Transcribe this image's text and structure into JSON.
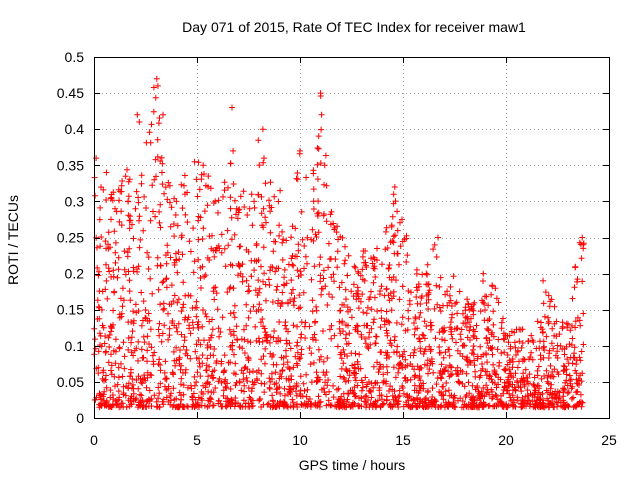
{
  "chart_data": {
    "type": "scatter",
    "title": "Day 071 of 2015, Rate Of TEC Index for receiver maw1",
    "xlabel": "GPS time / hours",
    "ylabel": "ROTI / TECUs",
    "xlim": [
      0,
      25
    ],
    "ylim": [
      0,
      0.5
    ],
    "x_ticks": [
      0,
      5,
      10,
      15,
      20,
      25
    ],
    "x_tick_labels": [
      "0",
      "5",
      "10",
      "15",
      "20",
      "25"
    ],
    "y_ticks": [
      0,
      0.05,
      0.1,
      0.15,
      0.2,
      0.25,
      0.3,
      0.35,
      0.4,
      0.45,
      0.5
    ],
    "y_tick_labels": [
      "0",
      "0.05",
      "0.1",
      "0.15",
      "0.2",
      "0.25",
      "0.3",
      "0.35",
      "0.4",
      "0.45",
      "0.5"
    ],
    "grid": true,
    "marker": "+",
    "marker_color": "#ff0000",
    "series": [
      {
        "name": "ROTI",
        "color": "#ff0000",
        "x_range_hours": [
          0,
          23.8
        ],
        "envelope": [
          [
            0,
            0.36
          ],
          [
            0.5,
            0.34
          ],
          [
            1,
            0.32
          ],
          [
            1.5,
            0.36
          ],
          [
            2,
            0.3
          ],
          [
            2.5,
            0.44
          ],
          [
            3,
            0.47
          ],
          [
            3.5,
            0.34
          ],
          [
            4,
            0.3
          ],
          [
            4.5,
            0.35
          ],
          [
            5,
            0.36
          ],
          [
            5.5,
            0.35
          ],
          [
            6,
            0.33
          ],
          [
            6.5,
            0.38
          ],
          [
            7,
            0.33
          ],
          [
            7.5,
            0.3
          ],
          [
            8,
            0.4
          ],
          [
            8.5,
            0.33
          ],
          [
            9,
            0.32
          ],
          [
            9.5,
            0.27
          ],
          [
            10,
            0.37
          ],
          [
            10.5,
            0.32
          ],
          [
            11,
            0.45
          ],
          [
            11.5,
            0.3
          ],
          [
            12,
            0.25
          ],
          [
            12.5,
            0.25
          ],
          [
            13,
            0.24
          ],
          [
            13.5,
            0.22
          ],
          [
            14,
            0.26
          ],
          [
            14.5,
            0.33
          ],
          [
            15,
            0.28
          ],
          [
            15.5,
            0.2
          ],
          [
            16,
            0.22
          ],
          [
            16.5,
            0.25
          ],
          [
            17,
            0.17
          ],
          [
            17.5,
            0.2
          ],
          [
            18,
            0.17
          ],
          [
            18.5,
            0.16
          ],
          [
            19,
            0.2
          ],
          [
            19.5,
            0.18
          ],
          [
            20,
            0.12
          ],
          [
            20.5,
            0.13
          ],
          [
            21,
            0.12
          ],
          [
            21.5,
            0.14
          ],
          [
            22,
            0.2
          ],
          [
            22.5,
            0.14
          ],
          [
            23,
            0.13
          ],
          [
            23.5,
            0.24
          ],
          [
            23.8,
            0.25
          ]
        ],
        "highlights": [
          [
            0.1,
            0.36
          ],
          [
            0.6,
            0.34
          ],
          [
            2.1,
            0.42
          ],
          [
            2.2,
            0.41
          ],
          [
            3.05,
            0.47
          ],
          [
            3.1,
            0.46
          ],
          [
            3.3,
            0.34
          ],
          [
            3.35,
            0.42
          ],
          [
            4.0,
            0.3
          ],
          [
            5.3,
            0.35
          ],
          [
            6.7,
            0.43
          ],
          [
            6.75,
            0.37
          ],
          [
            8.2,
            0.4
          ],
          [
            8.25,
            0.36
          ],
          [
            10.0,
            0.37
          ],
          [
            11.0,
            0.45
          ],
          [
            11.05,
            0.42
          ],
          [
            11.2,
            0.35
          ],
          [
            14.6,
            0.32
          ],
          [
            14.55,
            0.31
          ],
          [
            16.7,
            0.25
          ],
          [
            18.9,
            0.2
          ],
          [
            21.8,
            0.19
          ],
          [
            23.7,
            0.25
          ],
          [
            23.75,
            0.24
          ]
        ]
      }
    ]
  }
}
